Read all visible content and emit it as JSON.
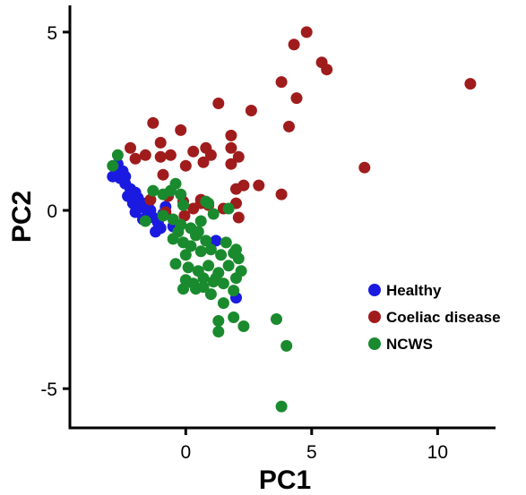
{
  "chart_data": {
    "type": "scatter",
    "xlabel": "PC1",
    "ylabel": "PC2",
    "xlim": [
      -4.6,
      12.3
    ],
    "ylim": [
      -6.1,
      5.75
    ],
    "xticks": [
      0,
      5,
      10
    ],
    "yticks": [
      -5,
      0,
      5
    ],
    "xtick_labels": [
      "0",
      "5",
      "10"
    ],
    "ytick_labels": [
      "-5",
      "0",
      "5"
    ],
    "legend_position": "bottom-right",
    "grid": false,
    "series": [
      {
        "name": "Healthy",
        "color": "#1a1ae0",
        "points": [
          [
            -2.8,
            1.2
          ],
          [
            -2.7,
            1.3
          ],
          [
            -2.5,
            1.1
          ],
          [
            -2.9,
            0.95
          ],
          [
            -2.6,
            0.9
          ],
          [
            -2.4,
            0.75
          ],
          [
            -2.2,
            0.6
          ],
          [
            -2.0,
            0.5
          ],
          [
            -1.9,
            0.35
          ],
          [
            -1.7,
            0.2
          ],
          [
            -1.6,
            0.05
          ],
          [
            -1.5,
            -0.1
          ],
          [
            -1.3,
            -0.2
          ],
          [
            -1.1,
            -0.35
          ],
          [
            -1.0,
            -0.5
          ],
          [
            -2.1,
            0.2
          ],
          [
            -1.8,
            0.1
          ],
          [
            -1.4,
            0.0
          ],
          [
            -0.9,
            -0.1
          ],
          [
            -1.2,
            -0.6
          ],
          [
            -0.8,
            0.1
          ],
          [
            -2.3,
            0.4
          ],
          [
            -2.6,
            1.05
          ],
          [
            -0.5,
            -0.45
          ],
          [
            -1.5,
            0.15
          ],
          [
            -2.0,
            -0.05
          ],
          [
            -1.7,
            -0.25
          ],
          [
            1.2,
            -0.85
          ],
          [
            2.0,
            -2.45
          ],
          [
            -2.4,
            0.95
          ]
        ]
      },
      {
        "name": "Coeliac disease",
        "color": "#a01c1c",
        "points": [
          [
            4.8,
            5.0
          ],
          [
            4.3,
            4.65
          ],
          [
            5.4,
            4.15
          ],
          [
            5.6,
            3.95
          ],
          [
            11.3,
            3.55
          ],
          [
            3.8,
            3.6
          ],
          [
            4.4,
            3.15
          ],
          [
            1.3,
            3.0
          ],
          [
            2.6,
            2.8
          ],
          [
            4.1,
            2.35
          ],
          [
            -1.3,
            2.45
          ],
          [
            -0.2,
            2.25
          ],
          [
            1.8,
            2.1
          ],
          [
            -2.2,
            1.75
          ],
          [
            -1.6,
            1.55
          ],
          [
            -1.0,
            1.9
          ],
          [
            -0.6,
            1.55
          ],
          [
            0.3,
            1.65
          ],
          [
            0.8,
            1.75
          ],
          [
            1.0,
            1.55
          ],
          [
            1.8,
            1.75
          ],
          [
            2.1,
            1.5
          ],
          [
            -2.0,
            1.45
          ],
          [
            -1.0,
            1.5
          ],
          [
            0.0,
            1.25
          ],
          [
            0.7,
            1.35
          ],
          [
            1.8,
            1.3
          ],
          [
            7.1,
            1.2
          ],
          [
            -0.9,
            1.0
          ],
          [
            0.6,
            0.3
          ],
          [
            2.0,
            0.6
          ],
          [
            2.3,
            0.7
          ],
          [
            2.9,
            0.7
          ],
          [
            3.8,
            0.45
          ],
          [
            2.0,
            0.2
          ],
          [
            -0.7,
            0.4
          ],
          [
            -0.1,
            0.25
          ],
          [
            0.6,
            0.2
          ],
          [
            -0.8,
            -0.05
          ],
          [
            0.9,
            0.15
          ],
          [
            -1.4,
            0.3
          ],
          [
            1.5,
            0.05
          ],
          [
            2.1,
            -0.2
          ],
          [
            -0.05,
            -0.15
          ],
          [
            0.3,
            0.05
          ]
        ]
      },
      {
        "name": "NCWS",
        "color": "#1a8a2e",
        "points": [
          [
            -2.7,
            1.55
          ],
          [
            -2.9,
            1.25
          ],
          [
            -1.3,
            0.55
          ],
          [
            -0.9,
            0.45
          ],
          [
            -0.6,
            0.55
          ],
          [
            -0.4,
            0.75
          ],
          [
            -0.2,
            0.45
          ],
          [
            -0.1,
            0.15
          ],
          [
            0.8,
            0.25
          ],
          [
            1.7,
            0.05
          ],
          [
            -1.6,
            -0.3
          ],
          [
            -0.9,
            -0.15
          ],
          [
            -0.5,
            -0.25
          ],
          [
            -0.2,
            -0.4
          ],
          [
            0.2,
            -0.5
          ],
          [
            0.6,
            -0.3
          ],
          [
            1.1,
            -0.1
          ],
          [
            0.4,
            -0.7
          ],
          [
            0.8,
            -0.85
          ],
          [
            -0.1,
            -0.9
          ],
          [
            -0.5,
            -0.8
          ],
          [
            0.2,
            -1.0
          ],
          [
            0.6,
            -1.15
          ],
          [
            1.0,
            -1.1
          ],
          [
            1.4,
            -1.25
          ],
          [
            1.9,
            -1.2
          ],
          [
            2.1,
            -1.35
          ],
          [
            2.2,
            -1.7
          ],
          [
            -0.4,
            -1.5
          ],
          [
            0.1,
            -1.6
          ],
          [
            0.5,
            -1.7
          ],
          [
            0.9,
            -1.55
          ],
          [
            1.3,
            -1.75
          ],
          [
            1.7,
            -1.55
          ],
          [
            2.0,
            -1.9
          ],
          [
            0.0,
            -1.95
          ],
          [
            0.3,
            -2.05
          ],
          [
            0.7,
            -2.15
          ],
          [
            1.1,
            -2.0
          ],
          [
            1.5,
            -2.05
          ],
          [
            1.9,
            -2.25
          ],
          [
            -0.1,
            -2.2
          ],
          [
            0.4,
            -2.2
          ],
          [
            1.0,
            -2.35
          ],
          [
            1.5,
            -2.6
          ],
          [
            1.3,
            -3.1
          ],
          [
            1.9,
            -3.0
          ],
          [
            2.3,
            -3.25
          ],
          [
            1.3,
            -3.4
          ],
          [
            3.6,
            -3.05
          ],
          [
            4.0,
            -3.8
          ],
          [
            3.8,
            -5.5
          ],
          [
            0.9,
            0.2
          ],
          [
            0.5,
            -0.6
          ],
          [
            1.6,
            -0.9
          ],
          [
            -0.3,
            -0.6
          ],
          [
            0.0,
            -1.25
          ],
          [
            1.2,
            -1.9
          ],
          [
            2.0,
            -1.1
          ],
          [
            0.7,
            -1.9
          ]
        ]
      }
    ]
  }
}
